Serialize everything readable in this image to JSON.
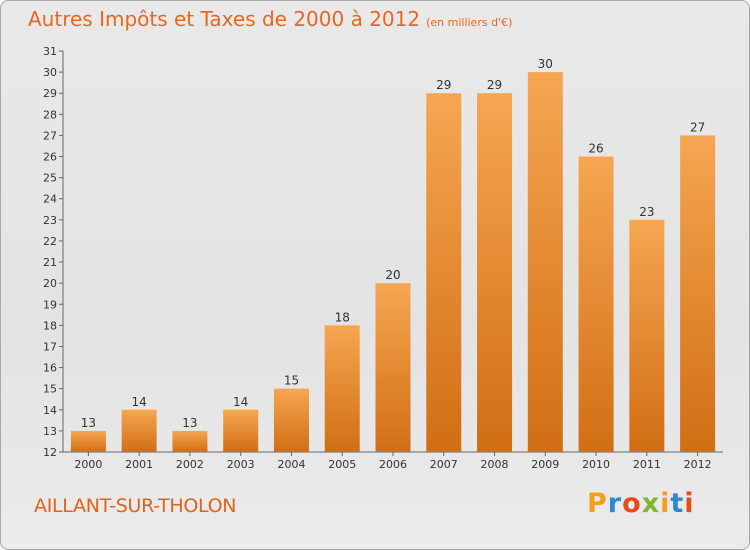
{
  "header": {
    "title": "Autres Impôts et Taxes de 2000 à 2012",
    "subtitle": "(en milliers d'€)"
  },
  "footer": {
    "city": "AILLANT-SUR-THOLON",
    "logo": [
      "P",
      "r",
      "o",
      "x",
      "i",
      "t",
      "i"
    ]
  },
  "colors": {
    "title": "#e8671f",
    "bar_top": "#f6a651",
    "bar_bottom": "#d16e14",
    "logo": [
      "#f0a020",
      "#2c8ad1",
      "#e64b1c",
      "#7cb92a",
      "#f0a020",
      "#2c8ad1",
      "#e64b1c"
    ]
  },
  "chart_data": {
    "type": "bar",
    "categories": [
      "2000",
      "2001",
      "2002",
      "2003",
      "2004",
      "2005",
      "2006",
      "2007",
      "2008",
      "2009",
      "2010",
      "2011",
      "2012"
    ],
    "values": [
      13,
      14,
      13,
      14,
      15,
      18,
      20,
      29,
      29,
      30,
      26,
      23,
      27
    ],
    "ylim": [
      12,
      31
    ],
    "yticks": [
      12,
      13,
      14,
      15,
      16,
      17,
      18,
      19,
      20,
      21,
      22,
      23,
      24,
      25,
      26,
      27,
      28,
      29,
      30,
      31
    ],
    "grid": false,
    "data_labels": true
  }
}
